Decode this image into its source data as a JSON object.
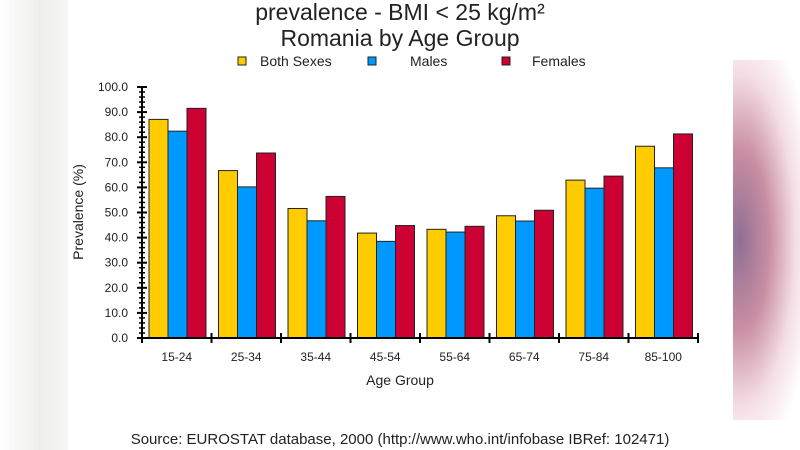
{
  "chart_data": {
    "type": "bar",
    "title": "prevalence - BMI < 25 kg/m²",
    "subtitle": "Romania by Age Group",
    "xlabel": "Age Group",
    "ylabel": "Prevalence (%)",
    "ylim": [
      0,
      100
    ],
    "yticks": [
      "0.0",
      "10.0",
      "20.0",
      "30.0",
      "40.0",
      "50.0",
      "60.0",
      "70.0",
      "80.0",
      "90.0",
      "100.0"
    ],
    "grid": false,
    "legend_position": "top",
    "categories": [
      "15-24",
      "25-34",
      "35-44",
      "45-54",
      "55-64",
      "65-74",
      "75-84",
      "85-100"
    ],
    "series": [
      {
        "name": "Both Sexes",
        "color": "#ffcc00",
        "values": [
          87.1,
          66.7,
          51.6,
          41.8,
          43.3,
          48.7,
          62.9,
          76.4
        ]
      },
      {
        "name": "Males",
        "color": "#0099ff",
        "values": [
          82.4,
          60.2,
          46.7,
          38.5,
          42.2,
          46.6,
          59.7,
          67.8
        ]
      },
      {
        "name": "Females",
        "color": "#cc0033",
        "values": [
          91.5,
          73.7,
          56.4,
          44.8,
          44.5,
          50.9,
          64.5,
          81.3
        ]
      }
    ],
    "source": "Source:  EUROSTAT database, 2000  (http://www.who.int/infobase IBRef: 102471)"
  }
}
